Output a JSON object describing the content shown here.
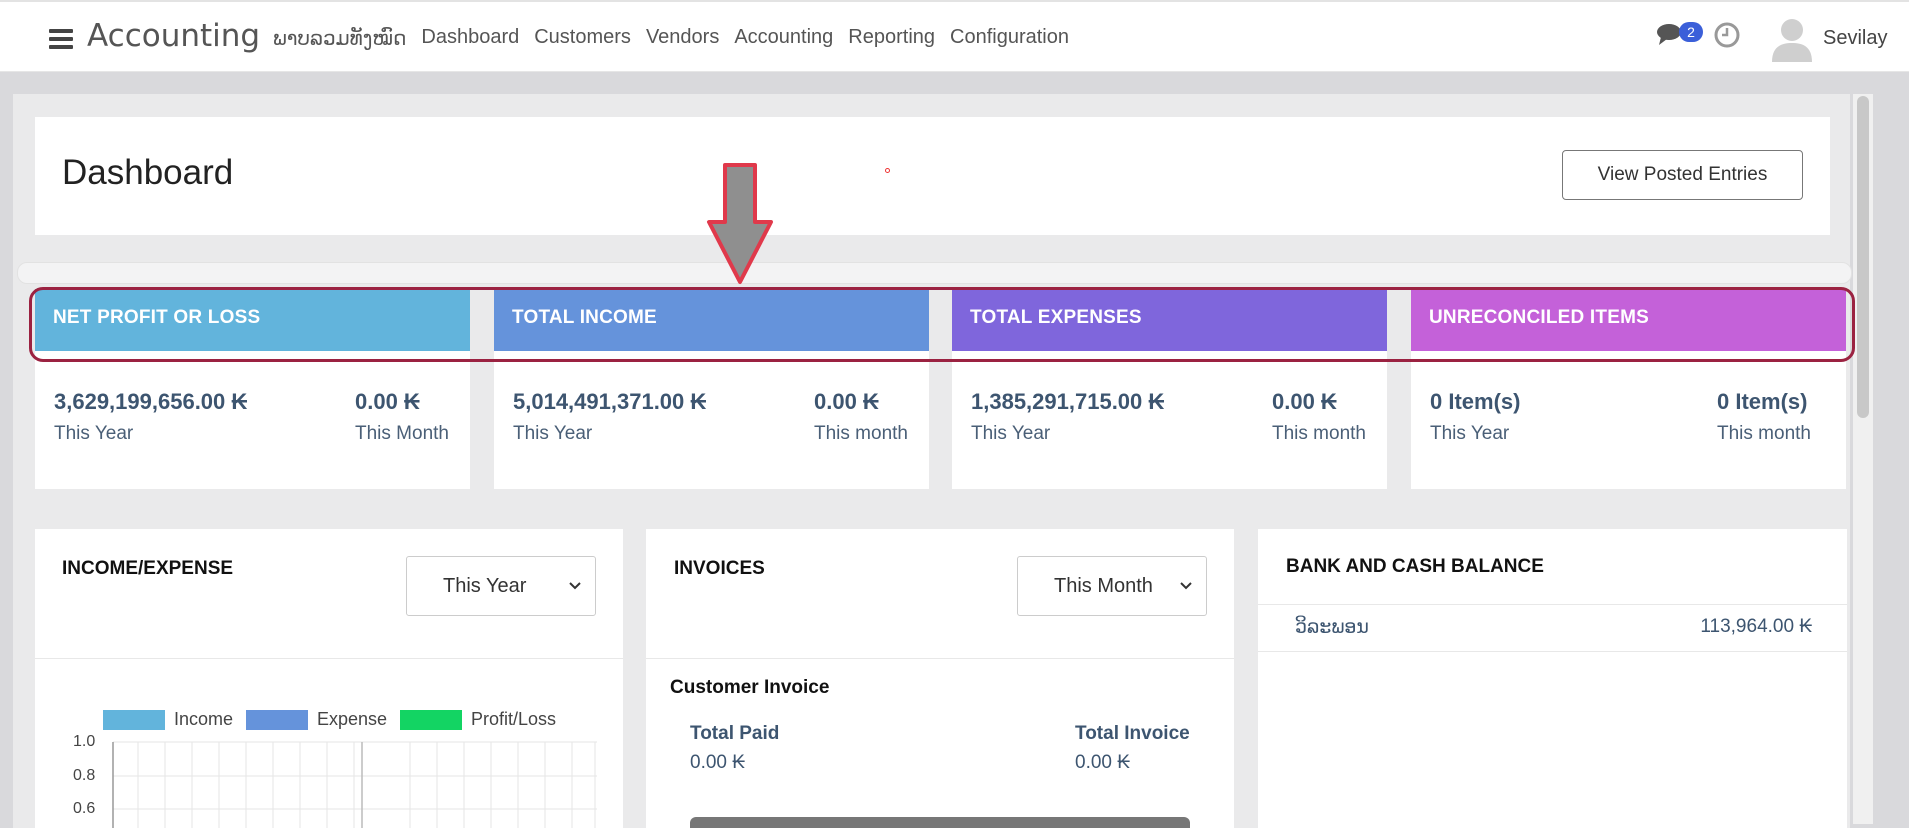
{
  "topbar": {
    "app_title": "Accounting",
    "nav": [
      "ພາບລວມທັງໝົດ",
      "Dashboard",
      "Customers",
      "Vendors",
      "Accounting",
      "Reporting",
      "Configuration"
    ],
    "chat_badge": "2",
    "username": "Sevilay"
  },
  "header": {
    "title": "Dashboard",
    "view_button": "View Posted Entries"
  },
  "kpis": [
    {
      "title": "NET PROFIT OR LOSS",
      "color": "#62b4dc",
      "year_value": "3,629,199,656.00 ₭",
      "year_label": "This Year",
      "month_value": "0.00 ₭",
      "month_label": "This Month"
    },
    {
      "title": "TOTAL INCOME",
      "color": "#6593db",
      "year_value": "5,014,491,371.00 ₭",
      "year_label": "This Year",
      "month_value": "0.00 ₭",
      "month_label": "This month"
    },
    {
      "title": "TOTAL EXPENSES",
      "color": "#7f66dc",
      "year_value": "1,385,291,715.00 ₭",
      "year_label": "This Year",
      "month_value": "0.00 ₭",
      "month_label": "This month"
    },
    {
      "title": "UNRECONCILED ITEMS",
      "color": "#c461d9",
      "year_value": "0 Item(s)",
      "year_label": "This Year",
      "month_value": "0 Item(s)",
      "month_label": "This month"
    }
  ],
  "income_expense": {
    "title": "INCOME/EXPENSE",
    "period": "This Year",
    "legend": [
      {
        "label": "Income",
        "color": "#62b4dc"
      },
      {
        "label": "Expense",
        "color": "#6593db"
      },
      {
        "label": "Profit/Loss",
        "color": "#13d463"
      }
    ],
    "yticks": [
      "1.0",
      "0.8",
      "0.6"
    ]
  },
  "invoices": {
    "title": "INVOICES",
    "period": "This Month",
    "subtitle": "Customer Invoice",
    "paid_label": "Total Paid",
    "paid_value": "0.00 ₭",
    "invoice_label": "Total Invoice",
    "invoice_value": "0.00 ₭"
  },
  "bank": {
    "title": "BANK AND CASH BALANCE",
    "rows": [
      {
        "name": "ວິລະພອນ",
        "amount": "113,964.00 ₭"
      }
    ]
  }
}
